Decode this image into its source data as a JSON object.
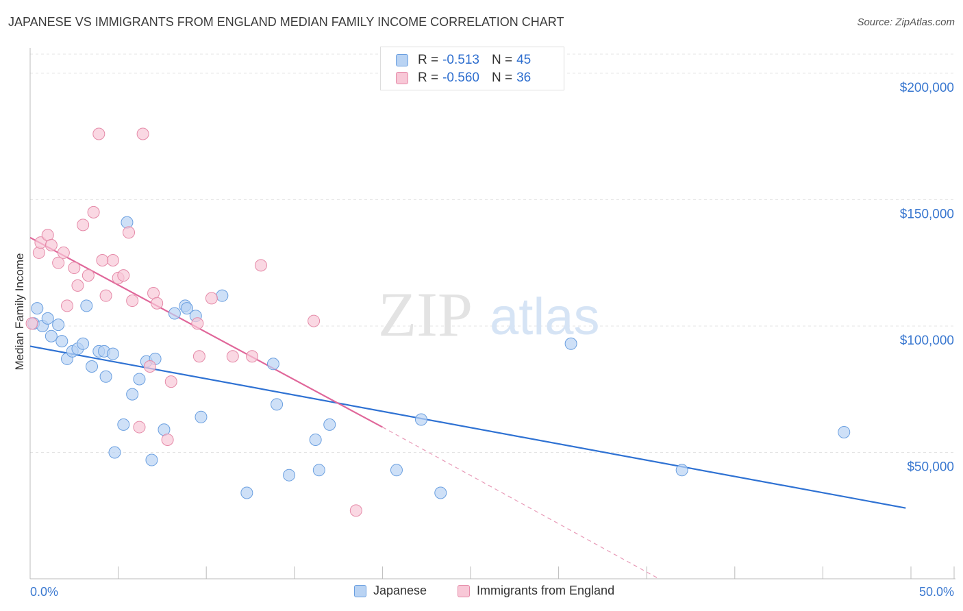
{
  "title": "JAPANESE VS IMMIGRANTS FROM ENGLAND MEDIAN FAMILY INCOME CORRELATION CHART",
  "source": "Source: ZipAtlas.com",
  "watermark": {
    "zip": "ZIP",
    "atlas": "atlas"
  },
  "legend": {
    "rows": [
      {
        "r_label": "R =",
        "r_value": "-0.513",
        "n_label": "N =",
        "n_value": "45",
        "color": "#a9c8f0",
        "border": "#5b8fd6"
      },
      {
        "r_label": "R =",
        "r_value": "-0.560",
        "n_label": "N =",
        "n_value": "36",
        "color": "#f8c3d3",
        "border": "#e27ea0"
      }
    ]
  },
  "bottom_legend": [
    "Japanese",
    "Immigrants from England"
  ],
  "chart_data": {
    "type": "scatter",
    "title": "JAPANESE VS IMMIGRANTS FROM ENGLAND MEDIAN FAMILY INCOME CORRELATION CHART",
    "xlabel": "",
    "ylabel": "Median Family Income",
    "xlim": [
      0,
      50
    ],
    "ylim": [
      0,
      210000
    ],
    "x_tick_labels": [
      "0.0%",
      "50.0%"
    ],
    "y_ticks": [
      50000,
      100000,
      150000,
      200000
    ],
    "y_tick_labels": [
      "$50,000",
      "$100,000",
      "$150,000",
      "$200,000"
    ],
    "grid": true,
    "legend_position": "top-center",
    "series": [
      {
        "name": "Japanese",
        "color": "#6a9fe0",
        "fill": "#b9d3f3",
        "points": [
          [
            0.2,
            101000
          ],
          [
            0.4,
            107000
          ],
          [
            0.7,
            100000
          ],
          [
            1.0,
            103000
          ],
          [
            1.2,
            96000
          ],
          [
            1.6,
            100500
          ],
          [
            1.8,
            94000
          ],
          [
            2.1,
            87000
          ],
          [
            2.4,
            90000
          ],
          [
            2.7,
            91000
          ],
          [
            3.0,
            93000
          ],
          [
            3.2,
            108000
          ],
          [
            3.5,
            84000
          ],
          [
            3.9,
            90000
          ],
          [
            4.2,
            90000
          ],
          [
            4.3,
            80000
          ],
          [
            4.7,
            89000
          ],
          [
            4.8,
            50000
          ],
          [
            5.3,
            61000
          ],
          [
            5.5,
            141000
          ],
          [
            5.8,
            73000
          ],
          [
            6.2,
            79000
          ],
          [
            6.6,
            86000
          ],
          [
            6.9,
            47000
          ],
          [
            7.1,
            87000
          ],
          [
            7.6,
            59000
          ],
          [
            8.2,
            105000
          ],
          [
            8.8,
            108000
          ],
          [
            8.9,
            107000
          ],
          [
            9.4,
            104000
          ],
          [
            9.7,
            64000
          ],
          [
            10.9,
            112000
          ],
          [
            12.3,
            34000
          ],
          [
            13.8,
            85000
          ],
          [
            14.0,
            69000
          ],
          [
            14.7,
            41000
          ],
          [
            16.2,
            55000
          ],
          [
            16.4,
            43000
          ],
          [
            17.0,
            61000
          ],
          [
            20.8,
            43000
          ],
          [
            22.2,
            63000
          ],
          [
            23.3,
            34000
          ],
          [
            30.7,
            93000
          ],
          [
            37.0,
            43000
          ],
          [
            46.2,
            58000
          ]
        ],
        "trend": [
          [
            0,
            92000
          ],
          [
            49.7,
            28000
          ]
        ]
      },
      {
        "name": "Immigrants from England",
        "color": "#e58aa8",
        "fill": "#f8c8d7",
        "points": [
          [
            0.1,
            101000
          ],
          [
            0.5,
            129000
          ],
          [
            0.6,
            133000
          ],
          [
            1.0,
            136000
          ],
          [
            1.2,
            132000
          ],
          [
            1.6,
            125000
          ],
          [
            1.9,
            129000
          ],
          [
            2.1,
            108000
          ],
          [
            2.5,
            123000
          ],
          [
            2.7,
            116000
          ],
          [
            3.0,
            140000
          ],
          [
            3.3,
            120000
          ],
          [
            3.6,
            145000
          ],
          [
            3.9,
            176000
          ],
          [
            4.1,
            126000
          ],
          [
            4.3,
            112000
          ],
          [
            4.7,
            126000
          ],
          [
            5.0,
            119000
          ],
          [
            5.3,
            120000
          ],
          [
            5.6,
            137000
          ],
          [
            5.8,
            110000
          ],
          [
            6.2,
            60000
          ],
          [
            6.4,
            176000
          ],
          [
            6.8,
            84000
          ],
          [
            7.0,
            113000
          ],
          [
            7.2,
            109000
          ],
          [
            7.8,
            55000
          ],
          [
            8.0,
            78000
          ],
          [
            9.5,
            101000
          ],
          [
            9.6,
            88000
          ],
          [
            10.3,
            111000
          ],
          [
            11.5,
            88000
          ],
          [
            12.6,
            88000
          ],
          [
            13.1,
            124000
          ],
          [
            16.1,
            102000
          ],
          [
            18.5,
            27000
          ]
        ],
        "trend": [
          [
            0,
            135000
          ],
          [
            20.0,
            60000
          ]
        ],
        "trend_extension": [
          [
            20.0,
            60000
          ],
          [
            35.7,
            0
          ]
        ]
      }
    ]
  }
}
